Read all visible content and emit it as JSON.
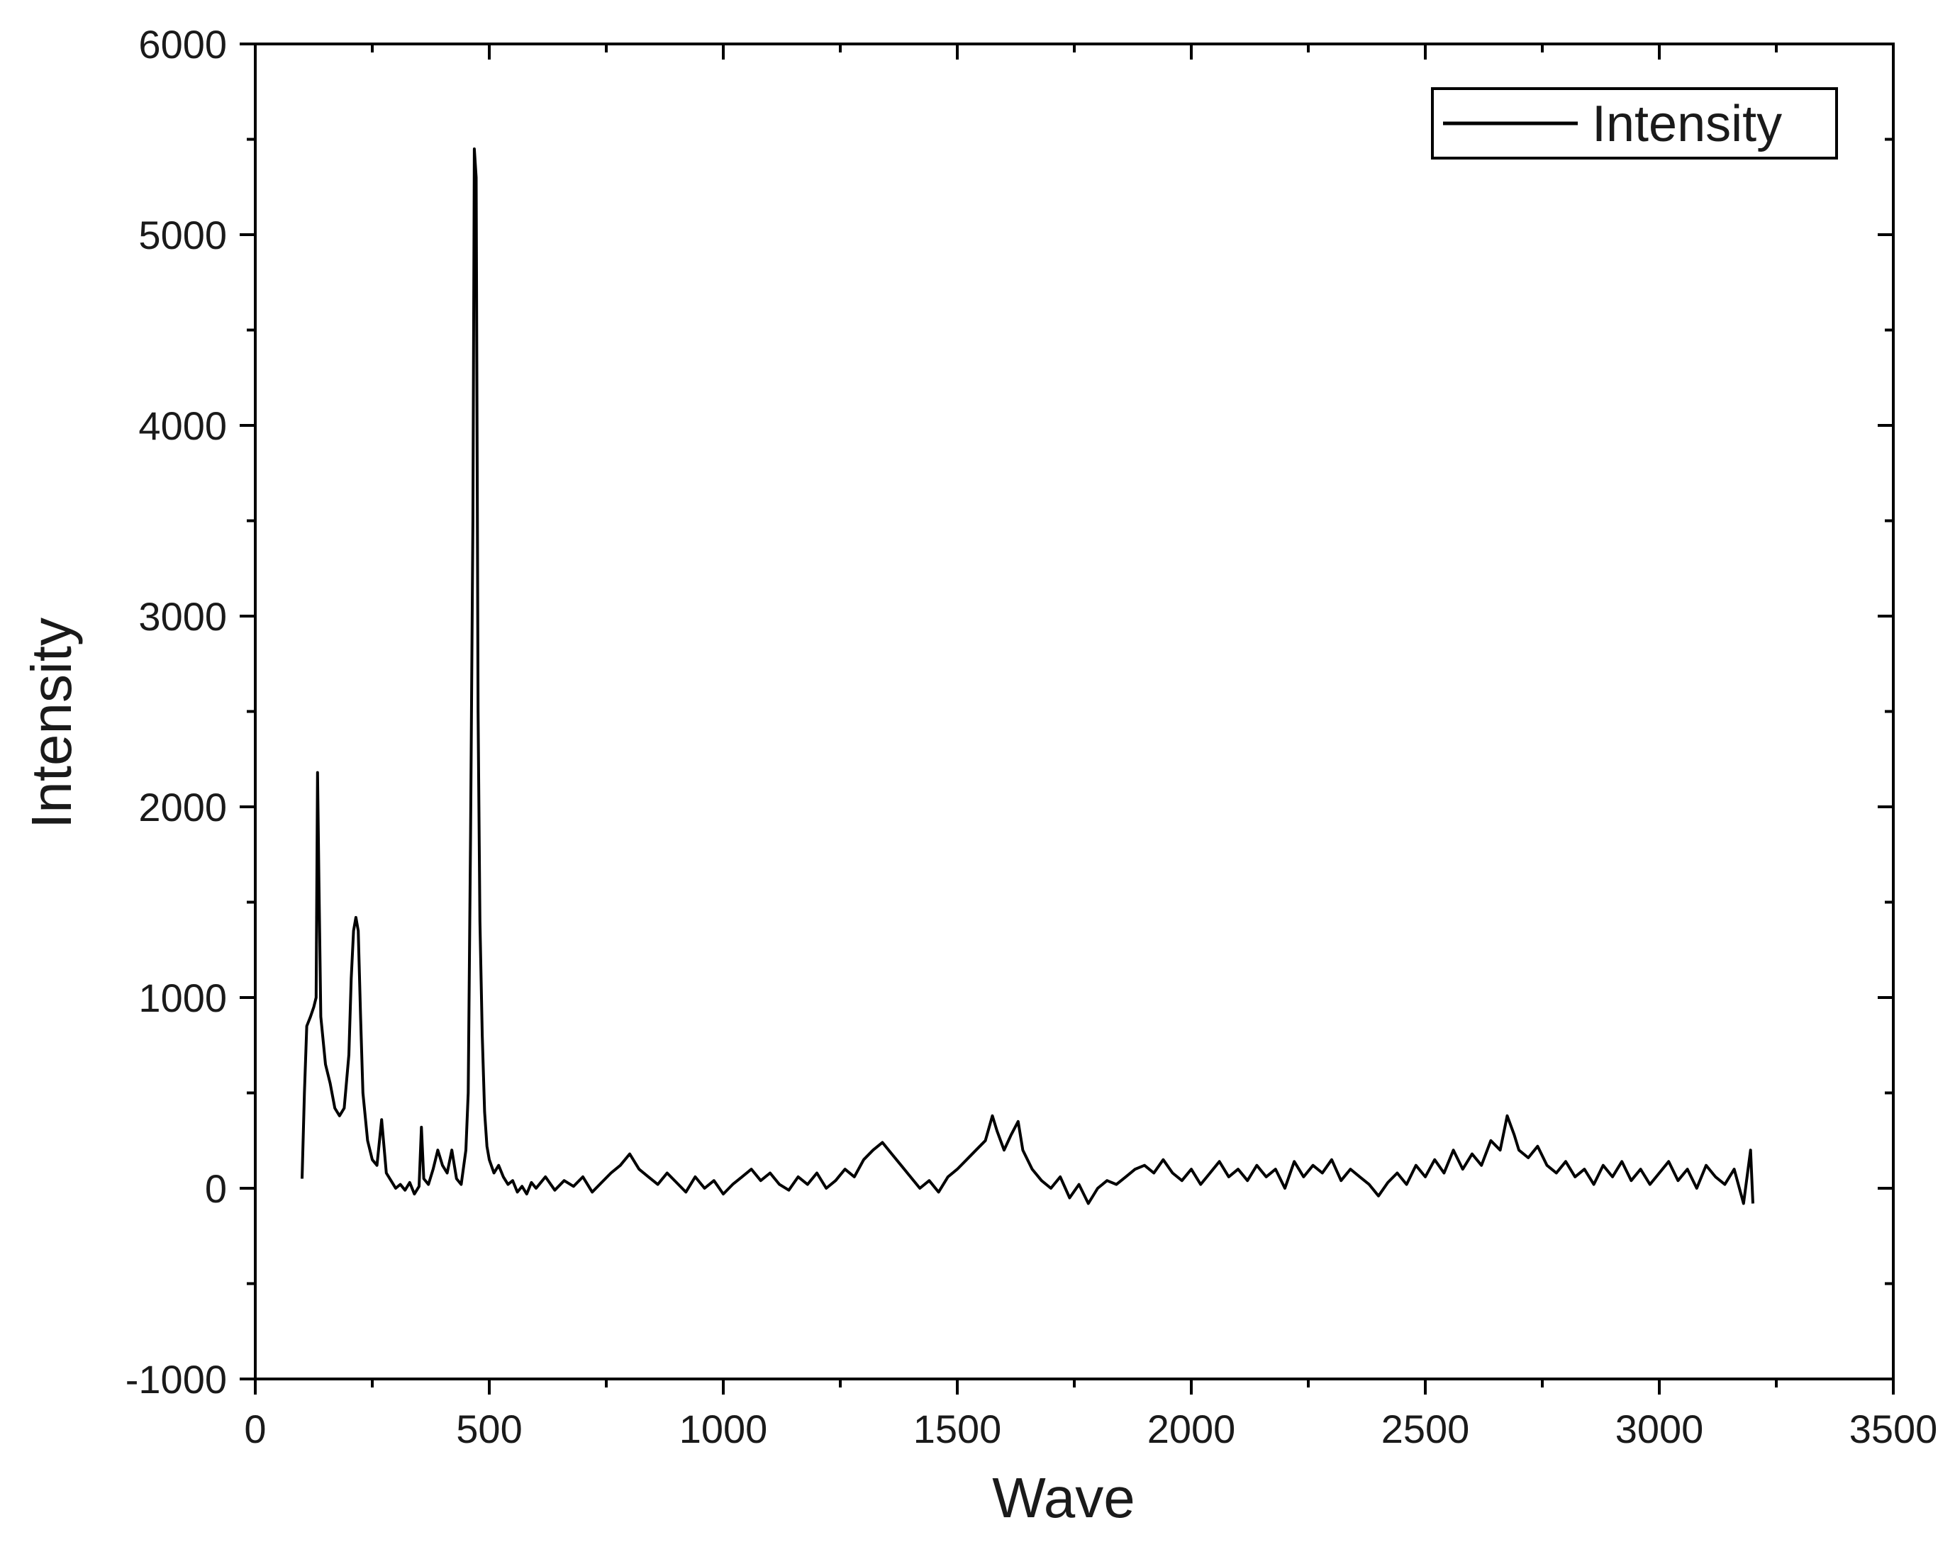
{
  "chart_data": {
    "type": "line",
    "title": "",
    "xlabel": "Wave",
    "ylabel": "Intensity",
    "xlim": [
      0,
      3500
    ],
    "ylim": [
      -1000,
      6000
    ],
    "xticks": [
      0,
      500,
      1000,
      1500,
      2000,
      2500,
      3000,
      3500
    ],
    "yticks": [
      -1000,
      0,
      1000,
      2000,
      3000,
      4000,
      5000,
      6000
    ],
    "x_tick_labels": [
      "0",
      "500",
      "1000",
      "1500",
      "2000",
      "2500",
      "3000",
      "3500"
    ],
    "y_tick_labels": [
      "-1000",
      "0",
      "1000",
      "2000",
      "3000",
      "4000",
      "5000",
      "6000"
    ],
    "grid": false,
    "legend": {
      "position": "top-right",
      "entries": [
        "Intensity"
      ]
    },
    "line_color": "#000000",
    "series": [
      {
        "name": "Intensity",
        "points": [
          [
            100,
            50
          ],
          [
            105,
            500
          ],
          [
            110,
            850
          ],
          [
            118,
            900
          ],
          [
            125,
            950
          ],
          [
            130,
            1000
          ],
          [
            133,
            2180
          ],
          [
            136,
            1600
          ],
          [
            140,
            900
          ],
          [
            150,
            650
          ],
          [
            160,
            550
          ],
          [
            170,
            420
          ],
          [
            180,
            380
          ],
          [
            190,
            420
          ],
          [
            200,
            700
          ],
          [
            205,
            1100
          ],
          [
            210,
            1350
          ],
          [
            215,
            1420
          ],
          [
            220,
            1350
          ],
          [
            225,
            900
          ],
          [
            230,
            500
          ],
          [
            240,
            250
          ],
          [
            250,
            150
          ],
          [
            260,
            120
          ],
          [
            270,
            360
          ],
          [
            280,
            80
          ],
          [
            290,
            40
          ],
          [
            300,
            0
          ],
          [
            310,
            20
          ],
          [
            320,
            -10
          ],
          [
            330,
            30
          ],
          [
            340,
            -30
          ],
          [
            350,
            10
          ],
          [
            355,
            320
          ],
          [
            360,
            50
          ],
          [
            370,
            20
          ],
          [
            380,
            100
          ],
          [
            390,
            200
          ],
          [
            400,
            120
          ],
          [
            410,
            80
          ],
          [
            420,
            200
          ],
          [
            430,
            50
          ],
          [
            440,
            20
          ],
          [
            450,
            200
          ],
          [
            455,
            500
          ],
          [
            460,
            1850
          ],
          [
            465,
            3500
          ],
          [
            468,
            5450
          ],
          [
            472,
            5300
          ],
          [
            476,
            2500
          ],
          [
            480,
            1400
          ],
          [
            485,
            800
          ],
          [
            490,
            400
          ],
          [
            495,
            220
          ],
          [
            500,
            150
          ],
          [
            510,
            80
          ],
          [
            520,
            120
          ],
          [
            530,
            60
          ],
          [
            540,
            20
          ],
          [
            550,
            40
          ],
          [
            560,
            -20
          ],
          [
            570,
            10
          ],
          [
            580,
            -30
          ],
          [
            590,
            30
          ],
          [
            600,
            0
          ],
          [
            620,
            60
          ],
          [
            640,
            -10
          ],
          [
            660,
            40
          ],
          [
            680,
            10
          ],
          [
            700,
            60
          ],
          [
            720,
            -20
          ],
          [
            740,
            30
          ],
          [
            760,
            80
          ],
          [
            780,
            120
          ],
          [
            800,
            180
          ],
          [
            820,
            100
          ],
          [
            840,
            60
          ],
          [
            860,
            20
          ],
          [
            880,
            80
          ],
          [
            900,
            30
          ],
          [
            920,
            -20
          ],
          [
            940,
            60
          ],
          [
            960,
            0
          ],
          [
            980,
            40
          ],
          [
            1000,
            -30
          ],
          [
            1020,
            20
          ],
          [
            1040,
            60
          ],
          [
            1060,
            100
          ],
          [
            1080,
            40
          ],
          [
            1100,
            80
          ],
          [
            1120,
            20
          ],
          [
            1140,
            -10
          ],
          [
            1160,
            60
          ],
          [
            1180,
            20
          ],
          [
            1200,
            80
          ],
          [
            1220,
            0
          ],
          [
            1240,
            40
          ],
          [
            1260,
            100
          ],
          [
            1280,
            60
          ],
          [
            1300,
            150
          ],
          [
            1320,
            200
          ],
          [
            1340,
            240
          ],
          [
            1360,
            180
          ],
          [
            1380,
            120
          ],
          [
            1400,
            60
          ],
          [
            1420,
            0
          ],
          [
            1440,
            40
          ],
          [
            1460,
            -20
          ],
          [
            1480,
            60
          ],
          [
            1500,
            100
          ],
          [
            1520,
            150
          ],
          [
            1540,
            200
          ],
          [
            1560,
            250
          ],
          [
            1575,
            380
          ],
          [
            1585,
            300
          ],
          [
            1600,
            200
          ],
          [
            1615,
            280
          ],
          [
            1630,
            350
          ],
          [
            1640,
            200
          ],
          [
            1660,
            100
          ],
          [
            1680,
            40
          ],
          [
            1700,
            0
          ],
          [
            1720,
            60
          ],
          [
            1740,
            -50
          ],
          [
            1760,
            20
          ],
          [
            1780,
            -80
          ],
          [
            1800,
            0
          ],
          [
            1820,
            40
          ],
          [
            1840,
            20
          ],
          [
            1860,
            60
          ],
          [
            1880,
            100
          ],
          [
            1900,
            120
          ],
          [
            1920,
            80
          ],
          [
            1940,
            150
          ],
          [
            1960,
            80
          ],
          [
            1980,
            40
          ],
          [
            2000,
            100
          ],
          [
            2020,
            20
          ],
          [
            2040,
            80
          ],
          [
            2060,
            140
          ],
          [
            2080,
            60
          ],
          [
            2100,
            100
          ],
          [
            2120,
            40
          ],
          [
            2140,
            120
          ],
          [
            2160,
            60
          ],
          [
            2180,
            100
          ],
          [
            2200,
            0
          ],
          [
            2220,
            140
          ],
          [
            2240,
            60
          ],
          [
            2260,
            120
          ],
          [
            2280,
            80
          ],
          [
            2300,
            150
          ],
          [
            2320,
            40
          ],
          [
            2340,
            100
          ],
          [
            2360,
            60
          ],
          [
            2380,
            20
          ],
          [
            2400,
            -40
          ],
          [
            2420,
            30
          ],
          [
            2440,
            80
          ],
          [
            2460,
            20
          ],
          [
            2480,
            120
          ],
          [
            2500,
            60
          ],
          [
            2520,
            150
          ],
          [
            2540,
            80
          ],
          [
            2560,
            200
          ],
          [
            2580,
            100
          ],
          [
            2600,
            180
          ],
          [
            2620,
            120
          ],
          [
            2640,
            250
          ],
          [
            2660,
            200
          ],
          [
            2675,
            380
          ],
          [
            2690,
            280
          ],
          [
            2700,
            200
          ],
          [
            2720,
            160
          ],
          [
            2740,
            220
          ],
          [
            2760,
            120
          ],
          [
            2780,
            80
          ],
          [
            2800,
            140
          ],
          [
            2820,
            60
          ],
          [
            2840,
            100
          ],
          [
            2860,
            20
          ],
          [
            2880,
            120
          ],
          [
            2900,
            60
          ],
          [
            2920,
            140
          ],
          [
            2940,
            40
          ],
          [
            2960,
            100
          ],
          [
            2980,
            20
          ],
          [
            3000,
            80
          ],
          [
            3020,
            140
          ],
          [
            3040,
            40
          ],
          [
            3060,
            100
          ],
          [
            3080,
            0
          ],
          [
            3100,
            120
          ],
          [
            3120,
            60
          ],
          [
            3140,
            20
          ],
          [
            3160,
            100
          ],
          [
            3180,
            -80
          ],
          [
            3195,
            200
          ],
          [
            3200,
            -80
          ]
        ]
      }
    ]
  }
}
